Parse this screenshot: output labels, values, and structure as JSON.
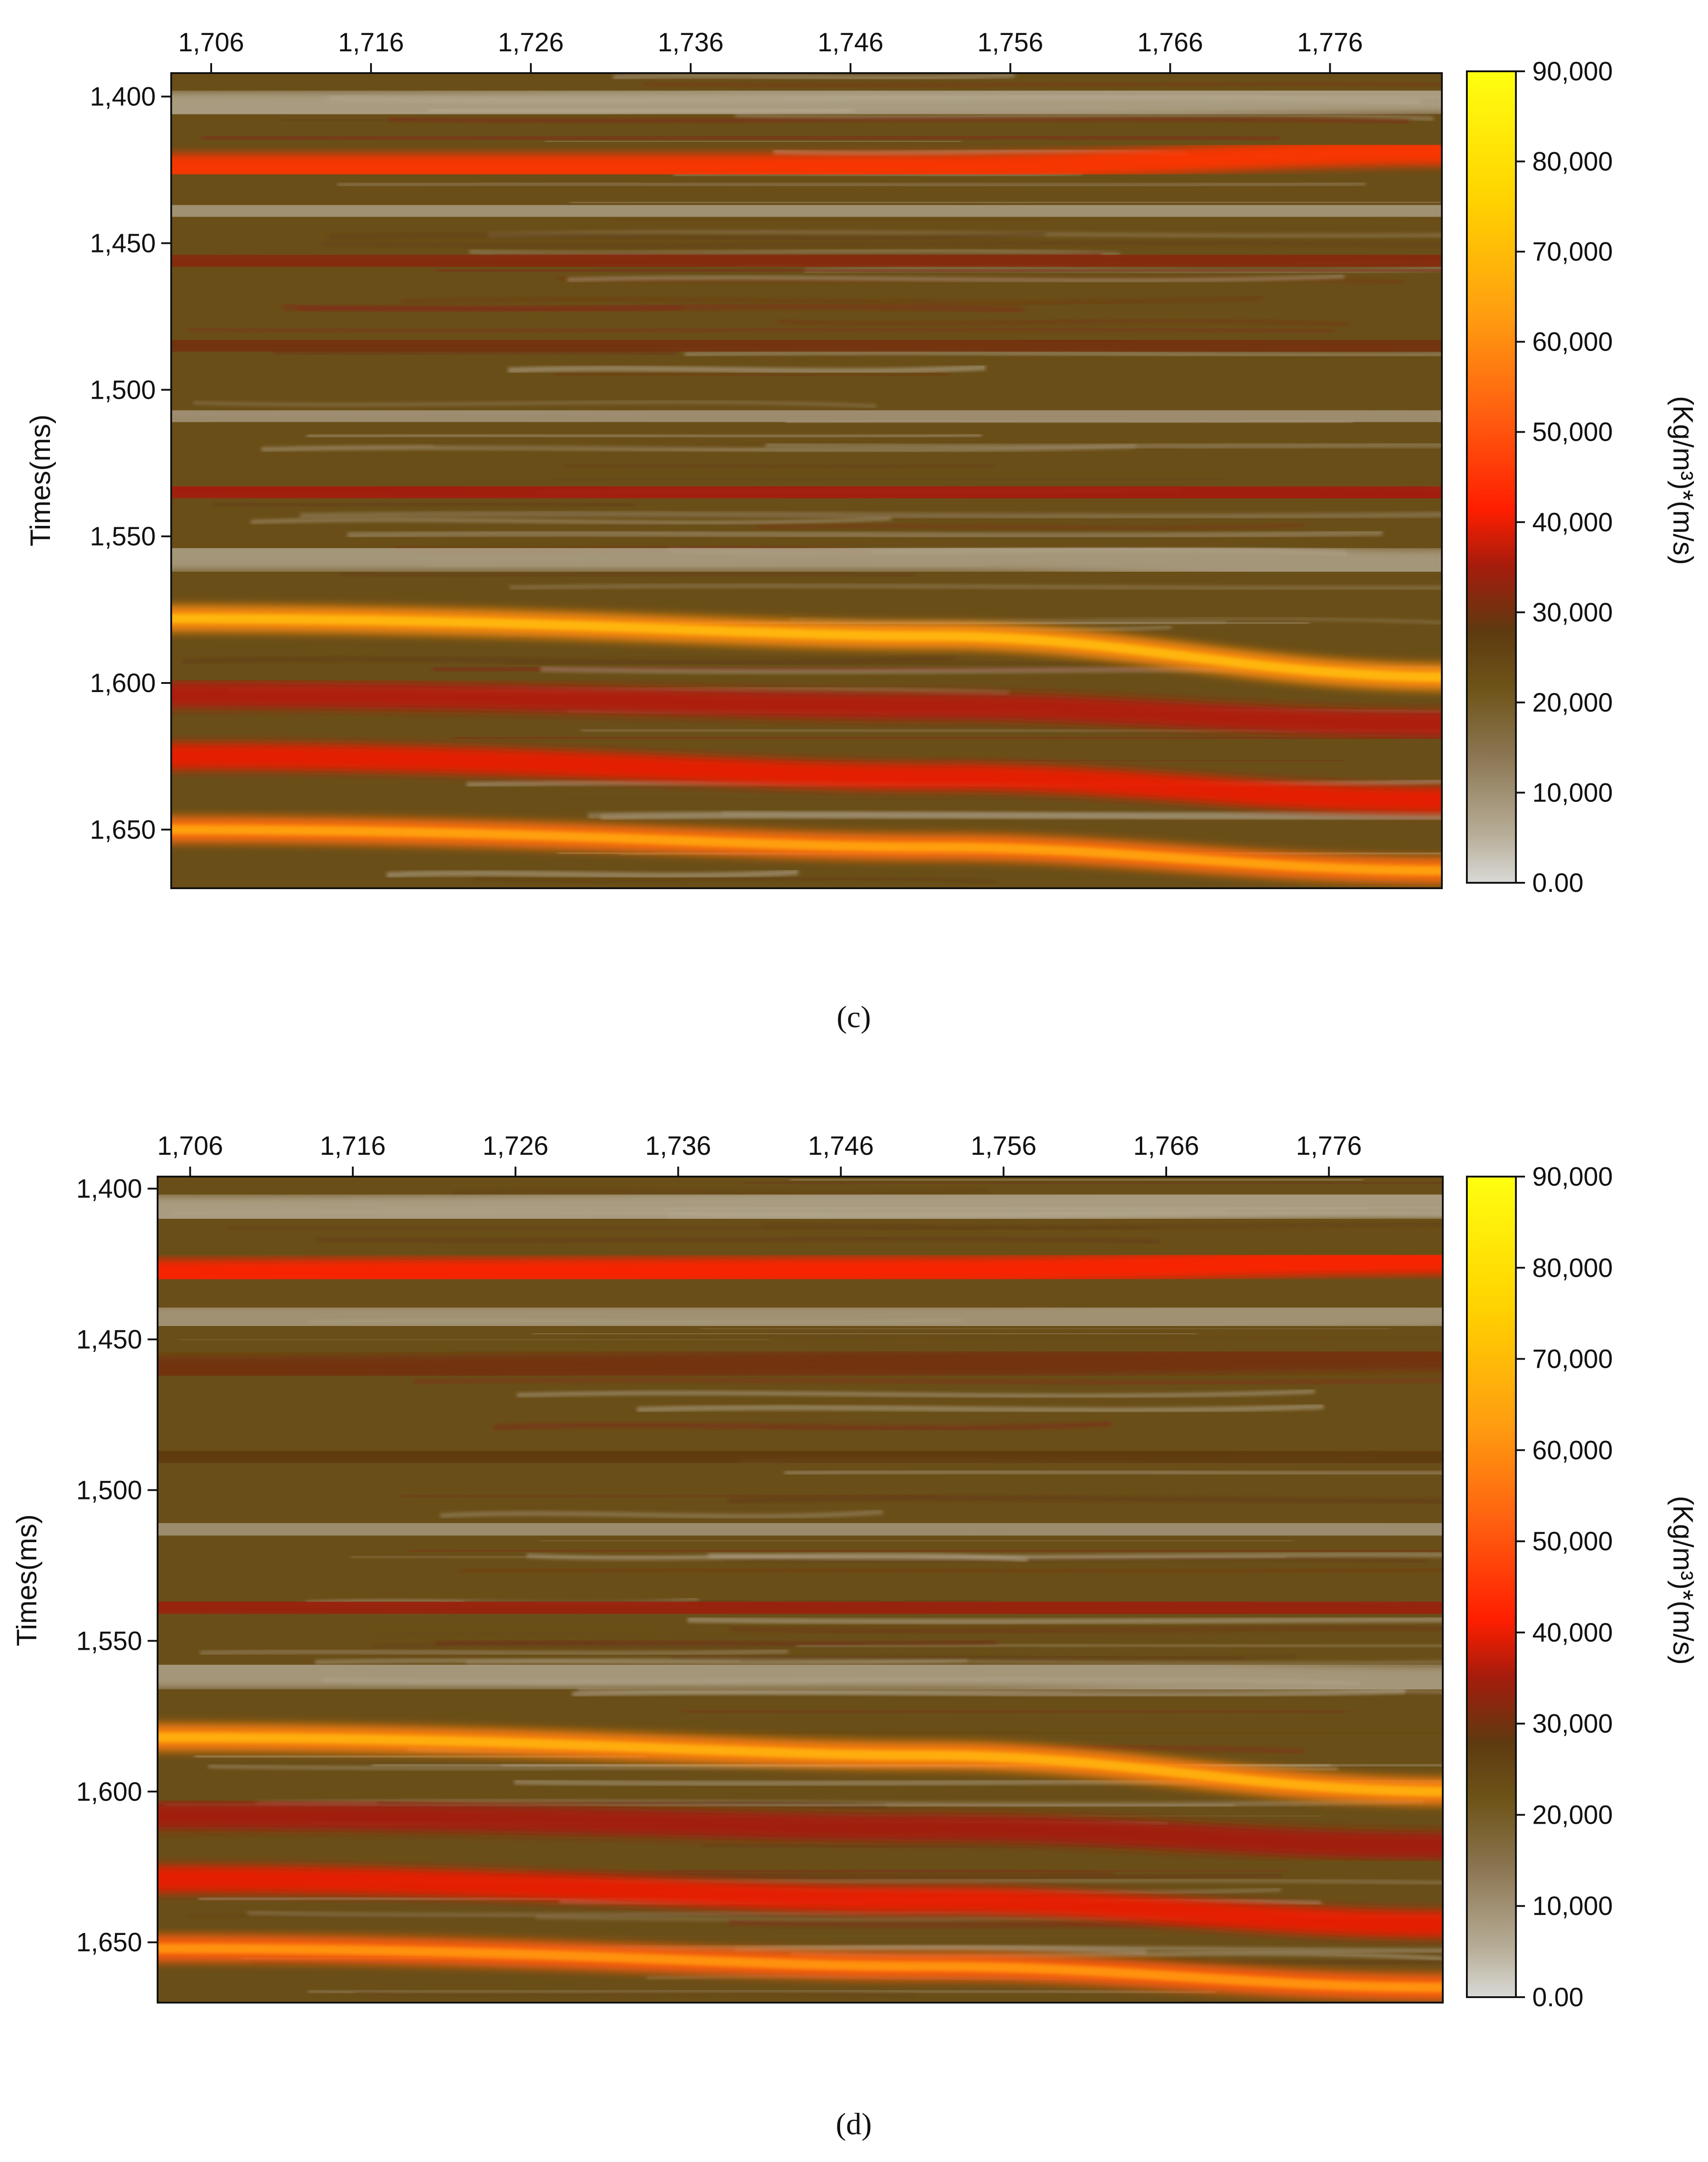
{
  "colors": {
    "scale": [
      "#d9d9d6",
      "#a89a7a",
      "#6e5418",
      "#5e3a10",
      "#c4200e",
      "#ff2a00",
      "#ff7a10",
      "#ffb400",
      "#ffe800",
      "#ffff10"
    ],
    "background": "#6a4e18"
  },
  "chart_data": [
    {
      "type": "heatmap",
      "panel_label": "(c)",
      "x_ticks": [
        "1,706",
        "1,716",
        "1,726",
        "1,736",
        "1,746",
        "1,756",
        "1,766",
        "1,776"
      ],
      "y_ticks": [
        "1,400",
        "1,450",
        "1,500",
        "1,550",
        "1,600",
        "1,650"
      ],
      "ylabel": "Times(ms)",
      "colorbar_label": "(Kg/m³)*(m/s)",
      "colorbar_ticks": [
        "90,000",
        "80,000",
        "70,000",
        "60,000",
        "50,000",
        "40,000",
        "30,000",
        "20,000",
        "10,000",
        "0.00"
      ],
      "x_range": [
        1703.5,
        1783
      ],
      "y_range": [
        1392,
        1670
      ],
      "value_range": [
        0,
        90000
      ],
      "horizons": [
        {
          "type": "light",
          "y": [
            1404,
            1402,
            1400
          ],
          "value": 6000
        },
        {
          "type": "band",
          "y": [
            1424,
            1424,
            1419
          ],
          "value": 45000
        },
        {
          "type": "light",
          "y": [
            1440,
            1440,
            1438
          ],
          "value": 8000
        },
        {
          "type": "band",
          "y": [
            1457,
            1456,
            1455
          ],
          "value": 32000
        },
        {
          "type": "band",
          "y": [
            1484,
            1484,
            1486
          ],
          "value": 30000
        },
        {
          "type": "light",
          "y": [
            1508,
            1508,
            1510
          ],
          "value": 9000
        },
        {
          "type": "band",
          "y": [
            1534,
            1535,
            1536
          ],
          "value": 35000
        },
        {
          "type": "light",
          "y": [
            1556,
            1556,
            1560
          ],
          "value": 7000
        },
        {
          "type": "band",
          "y": [
            1578,
            1584,
            1598
          ],
          "value": 60000
        },
        {
          "type": "band",
          "y": [
            1604,
            1608,
            1614
          ],
          "value": 36000
        },
        {
          "type": "band",
          "y": [
            1625,
            1632,
            1640
          ],
          "value": 40000
        },
        {
          "type": "band",
          "y": [
            1650,
            1656,
            1664
          ],
          "value": 55000
        }
      ]
    },
    {
      "type": "heatmap",
      "panel_label": "(d)",
      "x_ticks": [
        "1,706",
        "1,716",
        "1,726",
        "1,736",
        "1,746",
        "1,756",
        "1,766",
        "1,776"
      ],
      "y_ticks": [
        "1,400",
        "1,450",
        "1,500",
        "1,550",
        "1,600",
        "1,650"
      ],
      "ylabel": "Times(ms)",
      "colorbar_label": "(Kg/m³)*(m/s)",
      "colorbar_ticks": [
        "90,000",
        "80,000",
        "70,000",
        "60,000",
        "50,000",
        "40,000",
        "30,000",
        "20,000",
        "10,000",
        "0.00"
      ],
      "x_range": [
        1704,
        1783
      ],
      "y_range": [
        1396,
        1670
      ],
      "value_range": [
        0,
        90000
      ],
      "horizons": [
        {
          "type": "light",
          "y": [
            1408,
            1406,
            1404
          ],
          "value": 6000
        },
        {
          "type": "band",
          "y": [
            1428,
            1427,
            1424
          ],
          "value": 42000
        },
        {
          "type": "light",
          "y": [
            1444,
            1444,
            1441
          ],
          "value": 8000
        },
        {
          "type": "band",
          "y": [
            1460,
            1458,
            1456
          ],
          "value": 30000
        },
        {
          "type": "band",
          "y": [
            1488,
            1488,
            1490
          ],
          "value": 28000
        },
        {
          "type": "light",
          "y": [
            1512,
            1512,
            1514
          ],
          "value": 9000
        },
        {
          "type": "band",
          "y": [
            1538,
            1539,
            1540
          ],
          "value": 34000
        },
        {
          "type": "light",
          "y": [
            1560,
            1560,
            1564
          ],
          "value": 7000
        },
        {
          "type": "band",
          "y": [
            1582,
            1588,
            1600
          ],
          "value": 58000
        },
        {
          "type": "band",
          "y": [
            1608,
            1612,
            1618
          ],
          "value": 35000
        },
        {
          "type": "band",
          "y": [
            1629,
            1636,
            1644
          ],
          "value": 40000
        },
        {
          "type": "band",
          "y": [
            1652,
            1658,
            1665
          ],
          "value": 52000
        }
      ]
    }
  ]
}
